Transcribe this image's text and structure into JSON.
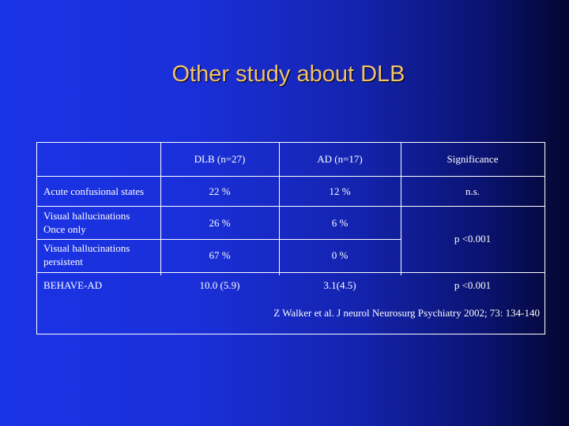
{
  "slide": {
    "title": "Other study about DLB",
    "citation": "Z Walker et al. J neurol Neurosurg Psychiatry 2002; 73: 134-140"
  },
  "table": {
    "headers": {
      "dlb": "DLB (n=27)",
      "ad": "AD (n=17)",
      "sig": "Significance"
    },
    "rows": [
      {
        "label1": "Acute confusional states",
        "label2": "",
        "dlb": "22 %",
        "ad": "12 %",
        "sig": "n.s."
      },
      {
        "label1": "Visual hallucinations",
        "label2": "Once only",
        "dlb": "26 %",
        "ad": "6 %",
        "sig": ""
      },
      {
        "label1": "Visual hallucinations",
        "label2": "persistent",
        "dlb": "67 %",
        "ad": "0 %",
        "sig": ""
      },
      {
        "label1": "BEHAVE-AD",
        "label2": "",
        "dlb": "10.0 (5.9)",
        "ad": "3.1(4.5)",
        "sig": "p <0.001"
      }
    ],
    "merged_sig": "p  <0.001"
  }
}
